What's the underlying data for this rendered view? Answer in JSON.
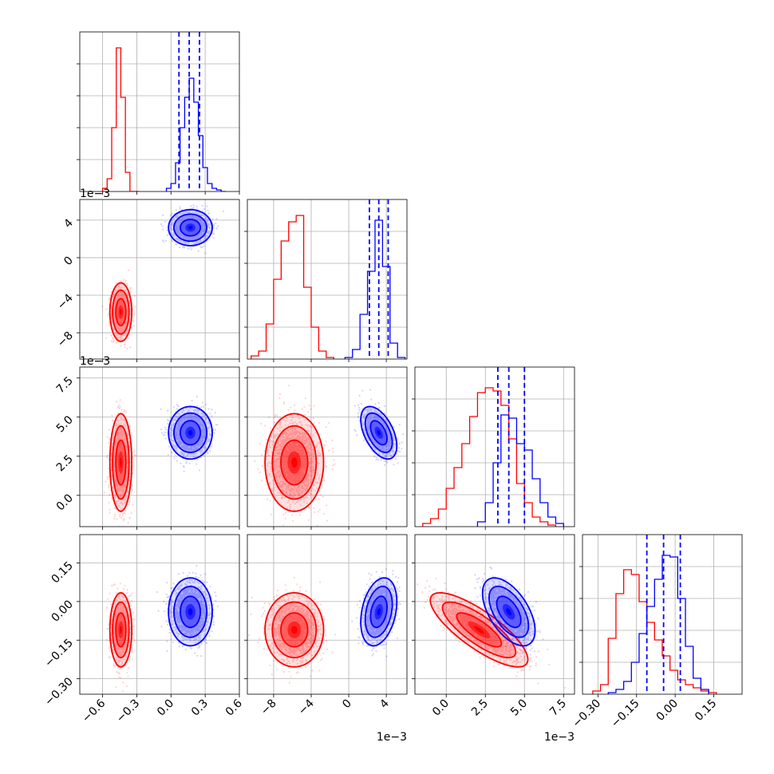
{
  "chart_data": {
    "type": "corner",
    "parameters": 4,
    "series": [
      {
        "name": "",
        "color": "#ff0000"
      },
      {
        "name": "",
        "color": "#0000ff"
      }
    ],
    "axes": [
      {
        "range": [
          -0.8,
          0.6
        ],
        "ticks": [
          -0.6,
          -0.3,
          0.0,
          0.3,
          0.6
        ],
        "tick_labels": [
          "−0.6",
          "−0.3",
          "0.0",
          "0.3",
          "0.6"
        ],
        "offset": ""
      },
      {
        "range": [
          -10.8,
          6.2
        ],
        "ticks": [
          -8,
          -4,
          0,
          4
        ],
        "tick_labels": [
          "−8",
          "−4",
          "0",
          "4"
        ],
        "offset": "1e−3"
      },
      {
        "range": [
          -2.0,
          8.2
        ],
        "ticks": [
          0.0,
          2.5,
          5.0,
          7.5
        ],
        "tick_labels": [
          "0.0",
          "2.5",
          "5.0",
          "7.5"
        ],
        "offset": "1e−3"
      },
      {
        "range": [
          -0.36,
          0.26
        ],
        "ticks": [
          -0.3,
          -0.15,
          0.0,
          0.15
        ],
        "tick_labels": [
          "−0.30",
          "−0.15",
          "0.00",
          "0.15"
        ],
        "offset": ""
      }
    ],
    "marginals": [
      {
        "red": {
          "edges": [
            -0.6,
            -0.56,
            -0.52,
            -0.48,
            -0.44,
            -0.4,
            -0.36,
            -0.32,
            -0.28
          ],
          "counts": [
            0.02,
            0.08,
            0.4,
            0.9,
            0.59,
            0.12,
            0.0,
            0.0
          ]
        },
        "blue": {
          "edges": [
            -0.04,
            0.0,
            0.04,
            0.08,
            0.12,
            0.16,
            0.2,
            0.24,
            0.28,
            0.32,
            0.36,
            0.4,
            0.44,
            0.48
          ],
          "counts": [
            0.02,
            0.05,
            0.18,
            0.4,
            0.59,
            0.71,
            0.56,
            0.35,
            0.15,
            0.05,
            0.02,
            0.01,
            0.0
          ]
        },
        "quantiles": [
          0.07,
          0.16,
          0.25
        ]
      },
      {
        "red": {
          "edges": [
            -10.4,
            -9.6,
            -8.8,
            -8.0,
            -7.2,
            -6.4,
            -5.6,
            -4.8,
            -4.0,
            -3.2,
            -2.4,
            -1.6
          ],
          "counts": [
            0.02,
            0.05,
            0.22,
            0.5,
            0.74,
            0.86,
            0.9,
            0.45,
            0.2,
            0.05,
            0.01
          ]
        },
        "blue": {
          "edges": [
            -0.4,
            0.4,
            1.2,
            2.0,
            2.8,
            3.6,
            4.4,
            5.2,
            6.0
          ],
          "counts": [
            0.01,
            0.06,
            0.28,
            0.55,
            0.87,
            0.58,
            0.1,
            0.01
          ]
        },
        "quantiles": [
          2.2,
          3.2,
          4.2
        ]
      },
      {
        "red": {
          "edges": [
            -1.5,
            -1.0,
            -0.5,
            0.0,
            0.5,
            1.0,
            1.5,
            2.0,
            2.5,
            3.0,
            3.5,
            4.0,
            4.5,
            5.0,
            5.5,
            6.0,
            6.5,
            7.0
          ],
          "counts": [
            0.02,
            0.05,
            0.11,
            0.24,
            0.37,
            0.52,
            0.69,
            0.84,
            0.87,
            0.85,
            0.76,
            0.55,
            0.27,
            0.15,
            0.06,
            0.03,
            0.01
          ]
        },
        "blue": {
          "edges": [
            2.0,
            2.5,
            3.0,
            3.5,
            4.0,
            4.5,
            5.0,
            5.5,
            6.0,
            6.5,
            7.0,
            7.5
          ],
          "counts": [
            0.03,
            0.15,
            0.4,
            0.7,
            0.68,
            0.52,
            0.48,
            0.3,
            0.15,
            0.06,
            0.02
          ]
        },
        "quantiles": [
          3.3,
          4.0,
          5.0
        ]
      },
      {
        "red": {
          "edges": [
            -0.32,
            -0.29,
            -0.26,
            -0.23,
            -0.2,
            -0.17,
            -0.14,
            -0.11,
            -0.08,
            -0.05,
            -0.02,
            0.01,
            0.04,
            0.07,
            0.1,
            0.13,
            0.16
          ],
          "counts": [
            0.02,
            0.06,
            0.35,
            0.63,
            0.78,
            0.75,
            0.58,
            0.45,
            0.34,
            0.24,
            0.15,
            0.09,
            0.06,
            0.04,
            0.02,
            0.01
          ]
        },
        "blue": {
          "edges": [
            -0.26,
            -0.23,
            -0.2,
            -0.17,
            -0.14,
            -0.11,
            -0.08,
            -0.05,
            -0.02,
            0.01,
            0.04,
            0.07,
            0.1,
            0.13
          ],
          "counts": [
            0.01,
            0.03,
            0.08,
            0.2,
            0.38,
            0.55,
            0.72,
            0.87,
            0.86,
            0.6,
            0.3,
            0.1,
            0.03
          ]
        },
        "quantiles": [
          -0.11,
          -0.045,
          0.02
        ]
      }
    ],
    "joint": [
      {
        "row": 1,
        "col": 0,
        "red": {
          "mean": [
            -0.44,
            -5.8
          ],
          "sd": [
            0.04,
            1.3
          ],
          "rho": 0.0
        },
        "blue": {
          "mean": [
            0.17,
            3.2
          ],
          "sd": [
            0.08,
            0.8
          ],
          "rho": 0.0
        }
      },
      {
        "row": 2,
        "col": 0,
        "red": {
          "mean": [
            -0.44,
            2.1
          ],
          "sd": [
            0.04,
            1.3
          ],
          "rho": 0.0
        },
        "blue": {
          "mean": [
            0.17,
            4.0
          ],
          "sd": [
            0.08,
            0.7
          ],
          "rho": 0.0
        }
      },
      {
        "row": 2,
        "col": 1,
        "red": {
          "mean": [
            -5.8,
            2.1
          ],
          "sd": [
            1.3,
            1.3
          ],
          "rho": 0.0
        },
        "blue": {
          "mean": [
            3.2,
            4.0
          ],
          "sd": [
            0.8,
            0.7
          ],
          "rho": -0.5
        }
      },
      {
        "row": 3,
        "col": 0,
        "red": {
          "mean": [
            -0.44,
            -0.11
          ],
          "sd": [
            0.04,
            0.06
          ],
          "rho": 0.0
        },
        "blue": {
          "mean": [
            0.17,
            -0.04
          ],
          "sd": [
            0.08,
            0.055
          ],
          "rho": 0.0
        }
      },
      {
        "row": 3,
        "col": 1,
        "red": {
          "mean": [
            -5.8,
            -0.11
          ],
          "sd": [
            1.3,
            0.06
          ],
          "rho": 0.0
        },
        "blue": {
          "mean": [
            3.2,
            -0.04
          ],
          "sd": [
            0.8,
            0.055
          ],
          "rho": 0.3
        }
      },
      {
        "row": 3,
        "col": 2,
        "red": {
          "mean": [
            2.1,
            -0.11
          ],
          "sd": [
            1.3,
            0.06
          ],
          "rho": -0.8
        },
        "blue": {
          "mean": [
            4.0,
            -0.04
          ],
          "sd": [
            0.7,
            0.055
          ],
          "rho": -0.55
        }
      }
    ]
  }
}
